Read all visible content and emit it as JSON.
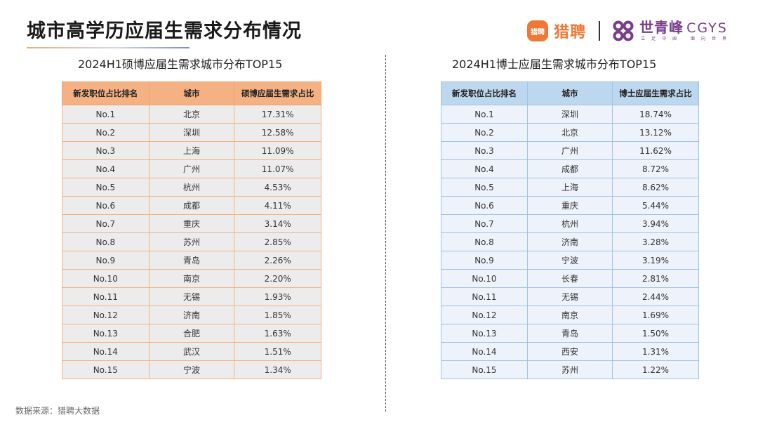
{
  "header": {
    "title": "城市高学历应届生需求分布情况",
    "brand": {
      "liepin_logo_text": "猎聘",
      "liepin_name": "猎聘",
      "cgys_cn": "世青峰",
      "cgys_en": "CGYS",
      "cgys_slogan": "立足中国 面向世界",
      "accent_orange": "#f07836",
      "accent_purple": "#7a3d8c"
    }
  },
  "left_table": {
    "heading": "2024H1硕博应届生需求城市分布TOP15",
    "columns": [
      "新发职位占比排名",
      "城市",
      "硕博应届生需求占比"
    ],
    "header_color": "#f4b183",
    "rows": [
      [
        "No.1",
        "北京",
        "17.31%"
      ],
      [
        "No.2",
        "深圳",
        "12.58%"
      ],
      [
        "No.3",
        "上海",
        "11.09%"
      ],
      [
        "No.4",
        "广州",
        "11.07%"
      ],
      [
        "No.5",
        "杭州",
        "4.53%"
      ],
      [
        "No.6",
        "成都",
        "4.11%"
      ],
      [
        "No.7",
        "重庆",
        "3.14%"
      ],
      [
        "No.8",
        "苏州",
        "2.85%"
      ],
      [
        "No.9",
        "青岛",
        "2.26%"
      ],
      [
        "No.10",
        "南京",
        "2.20%"
      ],
      [
        "No.11",
        "无锡",
        "1.93%"
      ],
      [
        "No.12",
        "济南",
        "1.85%"
      ],
      [
        "No.13",
        "合肥",
        "1.63%"
      ],
      [
        "No.14",
        "武汉",
        "1.51%"
      ],
      [
        "No.15",
        "宁波",
        "1.34%"
      ]
    ]
  },
  "right_table": {
    "heading": "2024H1博士应届生需求城市分布TOP15",
    "columns": [
      "新发职位占比排名",
      "城市",
      "博士应届生需求占比"
    ],
    "header_color": "#bdd7ee",
    "rows": [
      [
        "No.1",
        "深圳",
        "18.74%"
      ],
      [
        "No.2",
        "北京",
        "13.12%"
      ],
      [
        "No.3",
        "广州",
        "11.62%"
      ],
      [
        "No.4",
        "成都",
        "8.72%"
      ],
      [
        "No.5",
        "上海",
        "8.62%"
      ],
      [
        "No.6",
        "重庆",
        "5.44%"
      ],
      [
        "No.7",
        "杭州",
        "3.94%"
      ],
      [
        "No.8",
        "济南",
        "3.28%"
      ],
      [
        "No.9",
        "宁波",
        "3.19%"
      ],
      [
        "No.10",
        "长春",
        "2.81%"
      ],
      [
        "No.11",
        "无锡",
        "2.44%"
      ],
      [
        "No.12",
        "南京",
        "1.69%"
      ],
      [
        "No.13",
        "青岛",
        "1.50%"
      ],
      [
        "No.14",
        "西安",
        "1.31%"
      ],
      [
        "No.15",
        "苏州",
        "1.22%"
      ]
    ]
  },
  "footer": {
    "source": "数据来源：猎聘大数据"
  }
}
